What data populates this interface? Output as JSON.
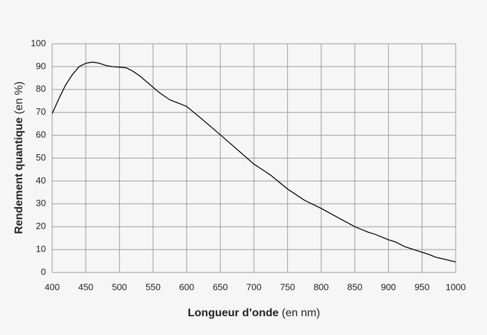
{
  "chart_data": {
    "type": "line",
    "x_label": {
      "bold": "Longueur d’onde",
      "rest": "(en nm)"
    },
    "y_label": {
      "bold": "Rendement quantique",
      "rest": "(en %)"
    },
    "series": [
      {
        "color": "#000000",
        "x": [
          400,
          410,
          420,
          430,
          440,
          450,
          460,
          470,
          480,
          490,
          500,
          510,
          520,
          530,
          540,
          550,
          560,
          575,
          600,
          625,
          650,
          675,
          700,
          725,
          750,
          775,
          800,
          825,
          850,
          870,
          880,
          900,
          910,
          925,
          950,
          960,
          970,
          1000
        ],
        "values": [
          69.5,
          76,
          82,
          86.5,
          90,
          91.5,
          92,
          91.5,
          90.5,
          90,
          89.8,
          89.5,
          88,
          86,
          83.5,
          81,
          78.5,
          75.5,
          72.6,
          66.5,
          60.2,
          53.8,
          47.4,
          42.5,
          36.5,
          31.6,
          28,
          24,
          20,
          17.6,
          16.7,
          14.3,
          13.4,
          11.2,
          8.8,
          7.9,
          6.7,
          4.6
        ]
      }
    ],
    "xlim": [
      400,
      1000
    ],
    "xticks": [
      400,
      450,
      500,
      550,
      600,
      650,
      700,
      750,
      800,
      850,
      900,
      950,
      1000
    ],
    "ylim": [
      0,
      100
    ],
    "yticks": [
      0,
      10,
      20,
      30,
      40,
      50,
      60,
      70,
      80,
      90,
      100
    ],
    "grid": true
  }
}
